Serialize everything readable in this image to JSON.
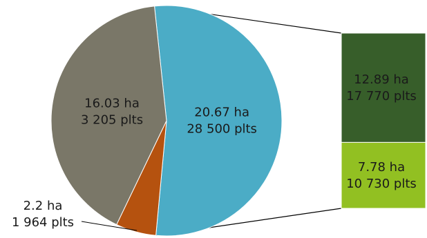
{
  "chart_data": {
    "type": "bar-of-pie",
    "title": "",
    "pie": {
      "slices": [
        {
          "name": "",
          "area_ha": 20.67,
          "plots": 28500,
          "label_area": "20.67 ha",
          "label_plots": "28 500 plts",
          "color": "#4BACC6"
        },
        {
          "name": "",
          "area_ha": 2.2,
          "plots": 1964,
          "label_area": "2.2 ha",
          "label_plots": "1 964 plts",
          "color": "#B5520F"
        },
        {
          "name": "",
          "area_ha": 16.03,
          "plots": 3205,
          "label_area": "16.03 ha",
          "label_plots": "3 205 plts",
          "color": "#7A7768"
        }
      ]
    },
    "breakdown": {
      "of_slice": 0,
      "segments": [
        {
          "name": "",
          "area_ha": 12.89,
          "plots": 17770,
          "label_area": "12.89 ha",
          "label_plots": "17 770 plts",
          "color": "#375E2A"
        },
        {
          "name": "",
          "area_ha": 7.78,
          "plots": 10730,
          "label_area": "7.78 ha",
          "label_plots": "10 730 plts",
          "color": "#92C022"
        }
      ]
    }
  }
}
